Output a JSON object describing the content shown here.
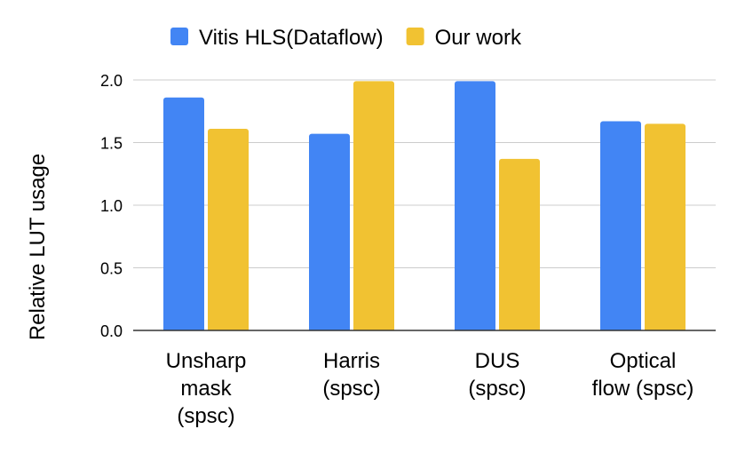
{
  "chart_data": {
    "type": "bar",
    "title": "",
    "xlabel": "",
    "ylabel": "Relative LUT usage",
    "ylim": [
      0,
      2.0
    ],
    "yticks": [
      "0.0",
      "0.5",
      "1.0",
      "1.5",
      "2.0"
    ],
    "ytick_values": [
      0,
      0.5,
      1.0,
      1.5,
      2.0
    ],
    "grid": true,
    "legend_position": "top",
    "categories": [
      [
        "Unsharp",
        "mask",
        "(spsc)"
      ],
      [
        "Harris",
        "(spsc)"
      ],
      [
        "DUS",
        "(spsc)"
      ],
      [
        "Optical",
        "flow (spsc)"
      ]
    ],
    "series": [
      {
        "name": "Vitis HLS(Dataflow)",
        "color": "#4285F4",
        "values": [
          1.86,
          1.57,
          1.99,
          1.67
        ]
      },
      {
        "name": "Our work",
        "color": "#F1C232",
        "values": [
          1.61,
          1.99,
          1.37,
          1.65
        ]
      }
    ]
  }
}
